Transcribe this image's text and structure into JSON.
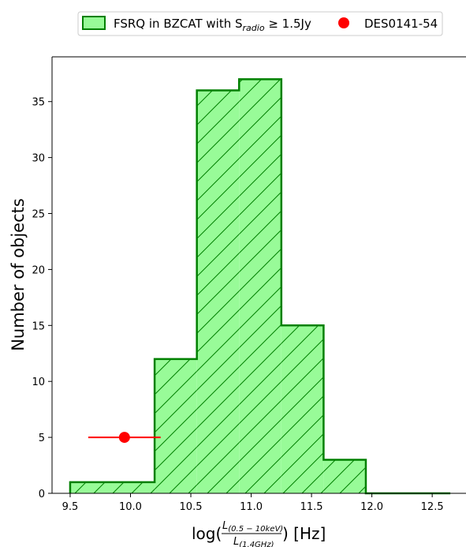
{
  "chart_data": {
    "type": "bar",
    "bin_edges": [
      9.5,
      9.85,
      10.2,
      10.55,
      10.9,
      11.25,
      11.6,
      11.95,
      12.3,
      12.65
    ],
    "counts": [
      1,
      1,
      12,
      36,
      37,
      15,
      3,
      0,
      0
    ],
    "xlim": [
      9.35,
      12.78
    ],
    "ylim": [
      0,
      39
    ],
    "xticks": [
      "9.5",
      "10.0",
      "10.5",
      "11.0",
      "11.5",
      "12.0",
      "12.5"
    ],
    "xtick_values": [
      9.5,
      10.0,
      10.5,
      11.0,
      11.5,
      12.0,
      12.5
    ],
    "yticks": [
      "0",
      "5",
      "10",
      "15",
      "20",
      "25",
      "30",
      "35"
    ],
    "ytick_values": [
      0,
      5,
      10,
      15,
      20,
      25,
      30,
      35
    ],
    "ylabel": "Number of objects",
    "xlabel": {
      "prefix": "log(",
      "numerator_symbol": "L",
      "numerator_sub": "(0.5 − 10keV)",
      "denominator_symbol": "L",
      "denominator_sub": "(1.4GHz)",
      "suffix": ") [Hz]"
    },
    "point": {
      "name": "DES0141-54",
      "x": 9.95,
      "y": 5,
      "xerr_low": 0.3,
      "xerr_high": 0.3
    },
    "legend": {
      "position": "top",
      "histogram_label": {
        "text1": "FSRQ in BZCAT with S",
        "sub": "radio",
        "text2": " ≥ 1.5Jy"
      },
      "point_label": "DES0141-54"
    },
    "colors": {
      "hist_fill": "#98fb98",
      "hist_edge": "#008000",
      "point": "#ff0000"
    }
  }
}
